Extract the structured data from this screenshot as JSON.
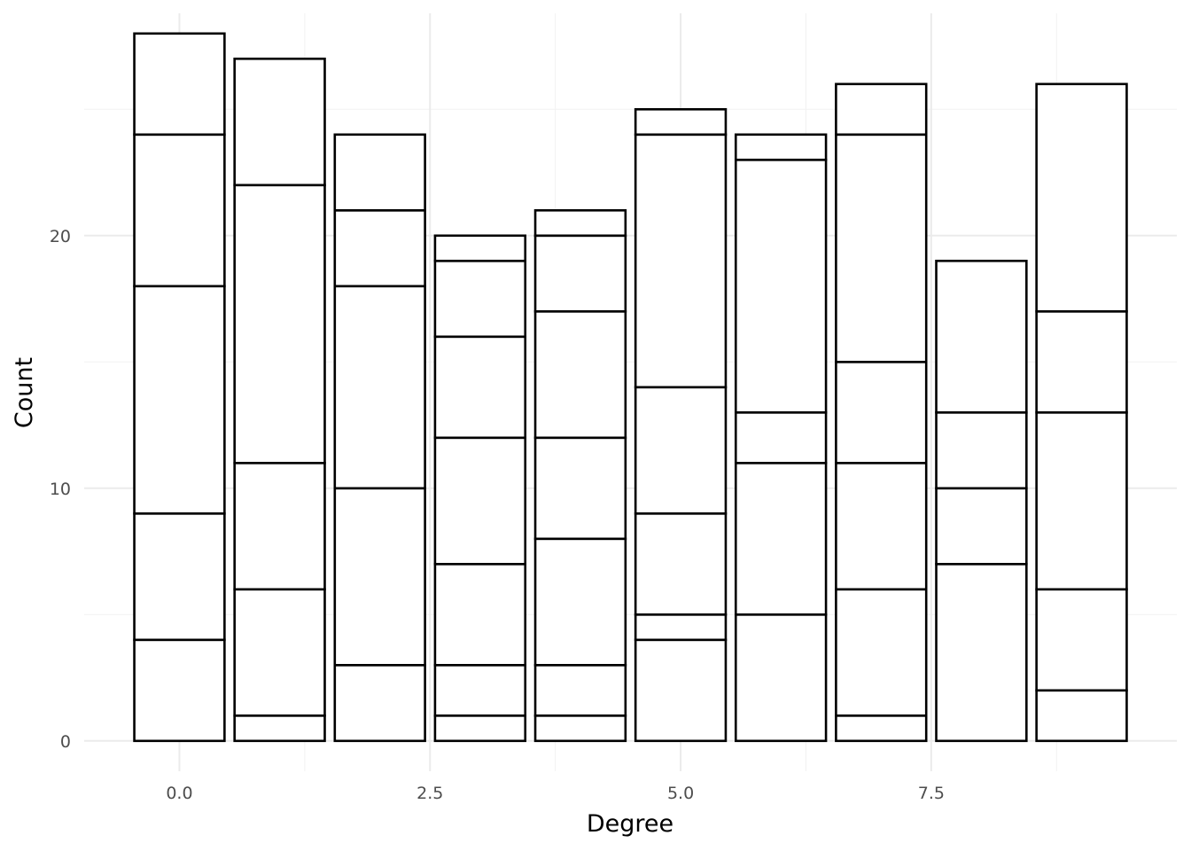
{
  "chart_data": {
    "type": "bar",
    "stacked": true,
    "xlabel": "Degree",
    "ylabel": "Count",
    "xlim": [
      -0.95,
      9.95
    ],
    "ylim": [
      -1.2,
      28.8
    ],
    "x_ticks": [
      0.0,
      2.5,
      5.0,
      7.5
    ],
    "x_tick_labels": [
      "0.0",
      "2.5",
      "5.0",
      "7.5"
    ],
    "y_ticks": [
      0,
      10,
      20
    ],
    "y_tick_labels": [
      "0",
      "10",
      "20"
    ],
    "grid": true,
    "fill_color": "#ffffff",
    "outline_color": "#000000",
    "bars": [
      {
        "x": 0,
        "stack_boundaries": [
          4,
          9,
          18,
          24,
          28
        ]
      },
      {
        "x": 1,
        "stack_boundaries": [
          1,
          6,
          11,
          22,
          27
        ]
      },
      {
        "x": 2,
        "stack_boundaries": [
          3,
          10,
          18,
          21,
          24
        ]
      },
      {
        "x": 3,
        "stack_boundaries": [
          1,
          3,
          7,
          12,
          16,
          19,
          20
        ]
      },
      {
        "x": 4,
        "stack_boundaries": [
          1,
          3,
          8,
          12,
          17,
          20,
          21
        ]
      },
      {
        "x": 5,
        "stack_boundaries": [
          4,
          5,
          9,
          14,
          24,
          25
        ]
      },
      {
        "x": 6,
        "stack_boundaries": [
          5,
          11,
          13,
          23,
          24
        ]
      },
      {
        "x": 7,
        "stack_boundaries": [
          1,
          6,
          11,
          15,
          24,
          26
        ]
      },
      {
        "x": 8,
        "stack_boundaries": [
          7,
          10,
          13,
          19
        ]
      },
      {
        "x": 9,
        "stack_boundaries": [
          2,
          6,
          13,
          17,
          26
        ]
      }
    ]
  }
}
